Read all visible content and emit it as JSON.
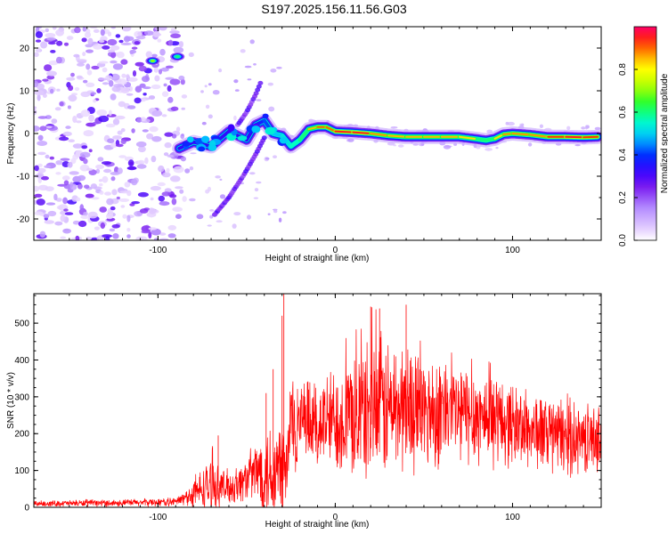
{
  "title": "S197.2025.156.11.56.G03",
  "chart_data": [
    {
      "type": "heatmap",
      "xlabel": "Height of straight line (km)",
      "ylabel": "Frequency (Hz)",
      "xlim": [
        -170,
        150
      ],
      "ylim": [
        -25,
        25
      ],
      "xticks": [
        -100,
        0,
        100
      ],
      "yticks": [
        -20,
        -10,
        0,
        10,
        20
      ],
      "colorbar": {
        "label": "Normalized spectral amplitude",
        "range": [
          0,
          1
        ],
        "ticks": [
          "0.0",
          "0.2",
          "0.4",
          "0.6",
          "0.8"
        ],
        "colors": [
          "#ffffff",
          "#d9b8ff",
          "#8a2be2",
          "#2a00ff",
          "#0000ff",
          "#00bfff",
          "#00ffd0",
          "#00ff40",
          "#a0ff00",
          "#ffff00",
          "#ffa000",
          "#ff3000",
          "#ff0066"
        ]
      },
      "ridge": {
        "x": [
          -88,
          -80,
          -70,
          -60,
          -50,
          -45,
          -40,
          -35,
          -30,
          -25,
          -20,
          -15,
          -10,
          -5,
          0,
          10,
          20,
          30,
          40,
          50,
          60,
          70,
          80,
          85,
          90,
          95,
          100,
          110,
          120,
          130,
          140,
          148
        ],
        "y": [
          -3.5,
          -2,
          -3,
          0.5,
          -1.5,
          2,
          3,
          0,
          -0.5,
          -3,
          -1.5,
          1,
          1.5,
          1.5,
          0.5,
          0.3,
          0,
          -0.5,
          -0.8,
          -0.8,
          -0.8,
          -0.8,
          -1.3,
          -1.6,
          -1.2,
          -0.2,
          0,
          -0.3,
          -0.8,
          -0.8,
          -0.9,
          -0.8
        ],
        "peak_amplitude": [
          0.4,
          0.5,
          0.4,
          0.5,
          0.4,
          0.5,
          0.5,
          0.6,
          0.7,
          0.7,
          0.8,
          0.8,
          0.9,
          0.9,
          0.9,
          1.0,
          0.9,
          0.85,
          0.85,
          0.85,
          0.85,
          0.85,
          0.8,
          0.8,
          0.8,
          0.85,
          0.9,
          0.85,
          0.9,
          0.95,
          0.95,
          0.9
        ]
      },
      "branches": [
        {
          "x": [
            -68,
            -60,
            -52,
            -45,
            -40
          ],
          "y": [
            -19,
            -15,
            -10,
            -5,
            -1
          ]
        },
        {
          "x": [
            -55,
            -50,
            -45,
            -42
          ],
          "y": [
            2,
            5,
            9,
            12
          ]
        }
      ],
      "blobs": [
        {
          "x": -103,
          "y": 17,
          "amplitude": 0.7
        },
        {
          "x": -89,
          "y": 18,
          "amplitude": 0.6
        }
      ]
    },
    {
      "type": "line",
      "xlabel": "Height of straight line (km)",
      "ylabel": "SNR (10 * v/v)",
      "xlim": [
        -170,
        150
      ],
      "ylim": [
        0,
        580
      ],
      "xticks": [
        -100,
        0,
        100
      ],
      "yticks": [
        0,
        100,
        200,
        300,
        400,
        500
      ],
      "color": "#ff0000",
      "envelope": {
        "x": [
          -170,
          -120,
          -90,
          -85,
          -80,
          -75,
          -70,
          -65,
          -60,
          -55,
          -50,
          -45,
          -40,
          -35,
          -30,
          -27,
          -26,
          -25,
          -20,
          -10,
          0,
          10,
          20,
          25,
          30,
          40,
          50,
          60,
          70,
          80,
          90,
          100,
          110,
          120,
          130,
          140,
          150
        ],
        "base": [
          10,
          12,
          15,
          25,
          35,
          50,
          60,
          55,
          55,
          60,
          80,
          95,
          100,
          100,
          100,
          100,
          200,
          230,
          220,
          225,
          240,
          250,
          260,
          270,
          270,
          270,
          265,
          260,
          255,
          250,
          240,
          225,
          210,
          200,
          190,
          185,
          190
        ],
        "amplitude": [
          8,
          10,
          12,
          20,
          40,
          60,
          80,
          50,
          50,
          55,
          60,
          90,
          130,
          150,
          190,
          120,
          140,
          160,
          130,
          130,
          150,
          180,
          200,
          210,
          200,
          180,
          170,
          160,
          150,
          140,
          130,
          120,
          110,
          110,
          110,
          100,
          90
        ]
      },
      "spikes": [
        {
          "x": -66,
          "y": 195
        },
        {
          "x": -39,
          "y": 310
        },
        {
          "x": -35,
          "y": 375
        },
        {
          "x": -29,
          "y": 580
        },
        {
          "x": -30,
          "y": 520
        },
        {
          "x": 20,
          "y": 545
        },
        {
          "x": 25,
          "y": 540
        },
        {
          "x": 40,
          "y": 550
        }
      ]
    }
  ]
}
